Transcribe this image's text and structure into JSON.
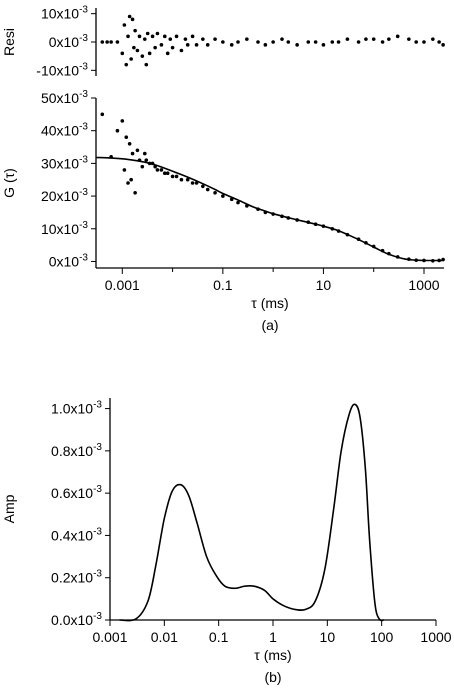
{
  "chart_data": [
    {
      "id": "residuals",
      "type": "scatter",
      "xscale": "log",
      "xlim": [
        0.0003,
        2500
      ],
      "ylim": [
        -0.012,
        0.012
      ],
      "ylabel": "Resi",
      "yticks": [
        {
          "value": 0.01,
          "mantissa": "10x10",
          "exp": "-3"
        },
        {
          "value": 0.0,
          "mantissa": "0x10",
          "exp": "-3"
        },
        {
          "value": -0.01,
          "mantissa": "-10x10",
          "exp": "-3"
        }
      ],
      "series": [
        {
          "points": [
            [
              0.0004,
              0.0
            ],
            [
              0.0005,
              0.0
            ],
            [
              0.0006,
              0.0
            ],
            [
              0.0008,
              0.0
            ],
            [
              0.001,
              -0.004
            ],
            [
              0.0011,
              0.006
            ],
            [
              0.0012,
              -0.008
            ],
            [
              0.0013,
              0.002
            ],
            [
              0.0014,
              0.009
            ],
            [
              0.0015,
              -0.006
            ],
            [
              0.0016,
              0.008
            ],
            [
              0.0017,
              -0.002
            ],
            [
              0.0018,
              0.004
            ],
            [
              0.002,
              -0.003
            ],
            [
              0.0022,
              0.002
            ],
            [
              0.0025,
              -0.005
            ],
            [
              0.0028,
              0.001
            ],
            [
              0.003,
              -0.008
            ],
            [
              0.0032,
              0.003
            ],
            [
              0.0035,
              -0.004
            ],
            [
              0.004,
              0.002
            ],
            [
              0.0045,
              -0.002
            ],
            [
              0.005,
              0.003
            ],
            [
              0.006,
              -0.001
            ],
            [
              0.007,
              0.002
            ],
            [
              0.008,
              -0.004
            ],
            [
              0.009,
              0.001
            ],
            [
              0.01,
              -0.002
            ],
            [
              0.012,
              0.002
            ],
            [
              0.015,
              -0.003
            ],
            [
              0.018,
              0.001
            ],
            [
              0.02,
              -0.001
            ],
            [
              0.025,
              0.002
            ],
            [
              0.03,
              -0.001
            ],
            [
              0.04,
              0.001
            ],
            [
              0.05,
              -0.001
            ],
            [
              0.07,
              0.001
            ],
            [
              0.1,
              0.0
            ],
            [
              0.15,
              -0.001
            ],
            [
              0.2,
              0.0
            ],
            [
              0.3,
              0.001
            ],
            [
              0.5,
              0.0
            ],
            [
              0.7,
              -0.001
            ],
            [
              1,
              0.0
            ],
            [
              1.5,
              0.001
            ],
            [
              2,
              0.0
            ],
            [
              3,
              -0.001
            ],
            [
              5,
              0.0
            ],
            [
              7,
              0.0
            ],
            [
              10,
              -0.001
            ],
            [
              15,
              0.0
            ],
            [
              20,
              0.0
            ],
            [
              30,
              0.001
            ],
            [
              50,
              0.0
            ],
            [
              70,
              0.001
            ],
            [
              100,
              0.001
            ],
            [
              150,
              0.0
            ],
            [
              200,
              0.001
            ],
            [
              300,
              0.002
            ],
            [
              500,
              0.001
            ],
            [
              700,
              0.0
            ],
            [
              1000,
              0.0
            ],
            [
              1500,
              0.001
            ],
            [
              2000,
              0.0
            ],
            [
              2400,
              -0.001
            ]
          ]
        }
      ]
    },
    {
      "id": "correlation",
      "type": "scatter",
      "xscale": "log",
      "xlim": [
        0.0003,
        2500
      ],
      "ylim": [
        -0.002,
        0.05
      ],
      "xlabel": "τ (ms)",
      "ylabel": "G (τ)",
      "panel_label": "(a)",
      "xticks": [
        {
          "value": 0.001,
          "label": "0.001"
        },
        {
          "value": 0.1,
          "label": "0.1"
        },
        {
          "value": 10,
          "label": "10"
        },
        {
          "value": 1000,
          "label": "1000"
        }
      ],
      "yticks": [
        {
          "value": 0.05,
          "mantissa": "50x10",
          "exp": "-3"
        },
        {
          "value": 0.04,
          "mantissa": "40x10",
          "exp": "-3"
        },
        {
          "value": 0.03,
          "mantissa": "30x10",
          "exp": "-3"
        },
        {
          "value": 0.02,
          "mantissa": "20x10",
          "exp": "-3"
        },
        {
          "value": 0.01,
          "mantissa": "10x10",
          "exp": "-3"
        },
        {
          "value": 0.0,
          "mantissa": "0x10",
          "exp": "-3"
        }
      ],
      "series": [
        {
          "kind": "points",
          "points": [
            [
              0.0004,
              0.045
            ],
            [
              0.0006,
              0.032
            ],
            [
              0.0008,
              0.04
            ],
            [
              0.001,
              0.043
            ],
            [
              0.0011,
              0.028
            ],
            [
              0.0012,
              0.038
            ],
            [
              0.0013,
              0.024
            ],
            [
              0.0014,
              0.036
            ],
            [
              0.0015,
              0.025
            ],
            [
              0.0016,
              0.033
            ],
            [
              0.0018,
              0.021
            ],
            [
              0.002,
              0.034
            ],
            [
              0.0022,
              0.031
            ],
            [
              0.0025,
              0.029
            ],
            [
              0.0028,
              0.033
            ],
            [
              0.003,
              0.031
            ],
            [
              0.0035,
              0.03
            ],
            [
              0.004,
              0.03
            ],
            [
              0.0045,
              0.029
            ],
            [
              0.005,
              0.028
            ],
            [
              0.006,
              0.028
            ],
            [
              0.007,
              0.027
            ],
            [
              0.008,
              0.027
            ],
            [
              0.01,
              0.026
            ],
            [
              0.012,
              0.026
            ],
            [
              0.015,
              0.025
            ],
            [
              0.02,
              0.025
            ],
            [
              0.025,
              0.024
            ],
            [
              0.03,
              0.024
            ],
            [
              0.04,
              0.023
            ],
            [
              0.05,
              0.022
            ],
            [
              0.07,
              0.021
            ],
            [
              0.1,
              0.02
            ],
            [
              0.15,
              0.019
            ],
            [
              0.2,
              0.018
            ],
            [
              0.3,
              0.017
            ],
            [
              0.5,
              0.016
            ],
            [
              0.7,
              0.015
            ],
            [
              1,
              0.0145
            ],
            [
              1.5,
              0.0138
            ],
            [
              2,
              0.0133
            ],
            [
              3,
              0.0127
            ],
            [
              5,
              0.012
            ],
            [
              7,
              0.0114
            ],
            [
              10,
              0.0108
            ],
            [
              15,
              0.01
            ],
            [
              20,
              0.0093
            ],
            [
              30,
              0.0082
            ],
            [
              50,
              0.0068
            ],
            [
              70,
              0.0057
            ],
            [
              100,
              0.0046
            ],
            [
              150,
              0.0033
            ],
            [
              200,
              0.0024
            ],
            [
              300,
              0.0014
            ],
            [
              500,
              0.0007
            ],
            [
              700,
              0.0004
            ],
            [
              1000,
              0.0003
            ],
            [
              1500,
              0.0002
            ],
            [
              2000,
              0.0003
            ],
            [
              2400,
              0.0006
            ]
          ]
        },
        {
          "kind": "line",
          "points": [
            [
              0.0003,
              0.0318
            ],
            [
              0.0005,
              0.0317
            ],
            [
              0.001,
              0.0314
            ],
            [
              0.002,
              0.0308
            ],
            [
              0.004,
              0.0298
            ],
            [
              0.007,
              0.0285
            ],
            [
              0.01,
              0.0276
            ],
            [
              0.02,
              0.0258
            ],
            [
              0.04,
              0.0238
            ],
            [
              0.07,
              0.022
            ],
            [
              0.1,
              0.0208
            ],
            [
              0.2,
              0.0188
            ],
            [
              0.4,
              0.0167
            ],
            [
              0.7,
              0.0154
            ],
            [
              1,
              0.0146
            ],
            [
              2,
              0.0134
            ],
            [
              4,
              0.0123
            ],
            [
              7,
              0.0114
            ],
            [
              10,
              0.0108
            ],
            [
              20,
              0.0094
            ],
            [
              40,
              0.0074
            ],
            [
              70,
              0.0056
            ],
            [
              100,
              0.0044
            ],
            [
              200,
              0.0022
            ],
            [
              400,
              0.0008
            ],
            [
              700,
              0.0004
            ],
            [
              1000,
              0.0003
            ],
            [
              2500,
              0.0003
            ]
          ]
        }
      ]
    },
    {
      "id": "distribution",
      "type": "line",
      "xscale": "log",
      "xlim": [
        0.001,
        1000
      ],
      "ylim": [
        0,
        0.00105
      ],
      "xlabel": "τ (ms)",
      "ylabel": "Amp",
      "panel_label": "(b)",
      "xticks": [
        {
          "value": 0.001,
          "label": "0.001"
        },
        {
          "value": 0.01,
          "label": "0.01"
        },
        {
          "value": 0.1,
          "label": "0.1"
        },
        {
          "value": 1,
          "label": "1"
        },
        {
          "value": 10,
          "label": "10"
        },
        {
          "value": 100,
          "label": "100"
        },
        {
          "value": 1000,
          "label": "1000"
        }
      ],
      "yticks": [
        {
          "value": 0.001,
          "mantissa": "1.0x10",
          "exp": "-3"
        },
        {
          "value": 0.0008,
          "mantissa": "0.8x10",
          "exp": "-3"
        },
        {
          "value": 0.0006,
          "mantissa": "0.6x10",
          "exp": "-3"
        },
        {
          "value": 0.0004,
          "mantissa": "0.4x10",
          "exp": "-3"
        },
        {
          "value": 0.0002,
          "mantissa": "0.2x10",
          "exp": "-3"
        },
        {
          "value": 0.0,
          "mantissa": "0.0x10",
          "exp": "-3"
        }
      ],
      "series": [
        {
          "points": [
            [
              0.0015,
              0.0
            ],
            [
              0.003,
              5e-06
            ],
            [
              0.005,
              9e-05
            ],
            [
              0.007,
              0.00026
            ],
            [
              0.01,
              0.00048
            ],
            [
              0.014,
              0.00061
            ],
            [
              0.02,
              0.00064
            ],
            [
              0.028,
              0.00059
            ],
            [
              0.04,
              0.00046
            ],
            [
              0.06,
              0.0003
            ],
            [
              0.09,
              0.00021
            ],
            [
              0.13,
              0.00016
            ],
            [
              0.2,
              0.00015
            ],
            [
              0.3,
              0.00016
            ],
            [
              0.45,
              0.00016
            ],
            [
              0.7,
              0.00014
            ],
            [
              1,
              0.0001
            ],
            [
              1.5,
              7e-05
            ],
            [
              2.5,
              5e-05
            ],
            [
              4,
              5e-05
            ],
            [
              6,
              9e-05
            ],
            [
              9,
              0.00024
            ],
            [
              13,
              0.00052
            ],
            [
              18,
              0.0008
            ],
            [
              25,
              0.00097
            ],
            [
              32,
              0.00102
            ],
            [
              40,
              0.00096
            ],
            [
              50,
              0.00072
            ],
            [
              60,
              0.00038
            ],
            [
              75,
              8e-05
            ],
            [
              90,
              5e-06
            ],
            [
              110,
              0.0
            ]
          ]
        }
      ]
    }
  ]
}
